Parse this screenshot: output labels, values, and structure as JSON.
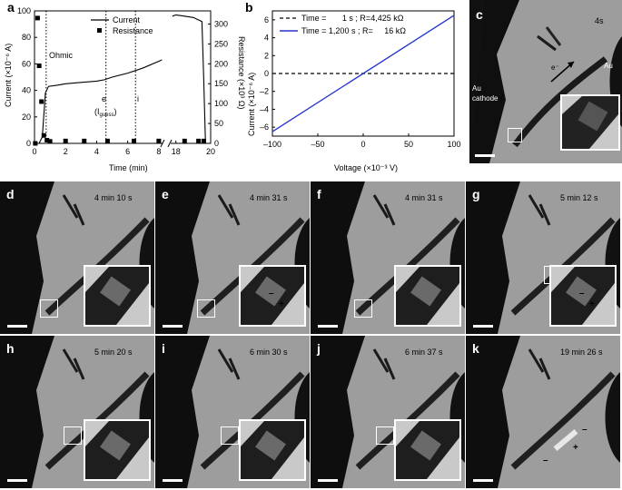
{
  "panel_labels": [
    "a",
    "b",
    "c",
    "d",
    "e",
    "f",
    "g",
    "h",
    "i",
    "j",
    "k"
  ],
  "panel_a": {
    "ylabel_left": "Current (×10⁻⁶ A)",
    "ylabel_right": "Resistance (×10³ Ω)",
    "xlabel": "Time (min)",
    "legend": {
      "current": "Current",
      "resistance": "Resistance"
    },
    "annotation_ohmic": "Ohmic",
    "annotation_e": "e",
    "annotation_iguess": "(I",
    "annotation_iguess_sub": "guess",
    "annotation_iguess_close": ")",
    "annotation_i": "i",
    "yticks_left": [
      "0",
      "20",
      "40",
      "60",
      "80",
      "100"
    ],
    "yticks_right": [
      "0",
      "50",
      "100",
      "150",
      "200",
      "250",
      "300"
    ],
    "xticks": [
      "0",
      "2",
      "4",
      "6",
      "8",
      "18",
      "20"
    ]
  },
  "panel_b": {
    "ylabel": "Current (×10⁻⁶ A)",
    "xlabel": "Voltage (×10⁻³ V)",
    "legend": [
      {
        "label": "Time =       1 s ; R=4,425 kΩ",
        "style": "dashed",
        "color": "#000000"
      },
      {
        "label": "Time = 1,200 s ; R=     16 kΩ",
        "style": "solid",
        "color": "#2233cc"
      }
    ],
    "yticks": [
      "6",
      "4",
      "2",
      "0",
      "–2",
      "–4",
      "–6"
    ],
    "xticks": [
      "–100",
      "–50",
      "0",
      "50",
      "100"
    ]
  },
  "panel_c": {
    "time": "4s",
    "label_electron": "e⁻",
    "label_au": "Au",
    "label_cathode": "Au\ncathode"
  },
  "tem_panels": [
    {
      "label": "d",
      "time": "4 min 10 s"
    },
    {
      "label": "e",
      "time": "4 min 31 s"
    },
    {
      "label": "f",
      "time": "4 min 31 s"
    },
    {
      "label": "g",
      "time": "5 min 12 s"
    },
    {
      "label": "h",
      "time": "5 min 20 s"
    },
    {
      "label": "i",
      "time": "6 min 30 s"
    },
    {
      "label": "j",
      "time": "6 min 37 s"
    },
    {
      "label": "k",
      "time": "19 min 26 s"
    }
  ],
  "signs": {
    "minus": "–",
    "plus": "+"
  },
  "chart_data": [
    {
      "type": "line",
      "xlabel": "Time (min)",
      "ylabel": "Current (×10⁻⁶ A)",
      "y2label": "Resistance (×10³ Ω)",
      "xlim": [
        0,
        20
      ],
      "ylim": [
        0,
        100
      ],
      "y2lim": [
        0,
        333
      ],
      "x_axis_break": [
        8.3,
        17.7
      ],
      "series": [
        {
          "name": "Current",
          "x": [
            0,
            0.3,
            0.5,
            0.7,
            0.9,
            1.5,
            2,
            3,
            4,
            4.5,
            5,
            6,
            7,
            8,
            8.2,
            17.8,
            18,
            18.5,
            19,
            19.5,
            19.6,
            19.7
          ],
          "y": [
            0,
            0,
            5,
            38,
            43,
            44,
            45,
            46,
            47,
            48,
            50,
            53,
            57,
            62,
            63,
            96,
            97,
            96,
            95,
            92,
            50,
            0
          ]
        },
        {
          "name": "Resistance",
          "x": [
            0.05,
            0.2,
            0.3,
            0.45,
            0.6,
            0.8,
            1.0,
            2.0,
            3.2,
            4.7,
            6.4,
            8.0,
            18.5,
            19.3,
            19.6
          ],
          "y": [
            0,
            315,
            195,
            105,
            20,
            8,
            5,
            6,
            6,
            6,
            6,
            6,
            6,
            6,
            6
          ]
        }
      ]
    },
    {
      "type": "line",
      "xlabel": "Voltage (×10⁻³ V)",
      "ylabel": "Current (×10⁻⁶ A)",
      "xlim": [
        -100,
        100
      ],
      "ylim": [
        -7,
        7
      ],
      "series": [
        {
          "name": "Time =       1 s ; R=4,425 kΩ",
          "x": [
            -100,
            100
          ],
          "y": [
            0,
            0
          ]
        },
        {
          "name": "Time = 1,200 s ; R=     16 kΩ",
          "x": [
            -100,
            100
          ],
          "y": [
            -6.5,
            6.5
          ]
        }
      ]
    }
  ]
}
